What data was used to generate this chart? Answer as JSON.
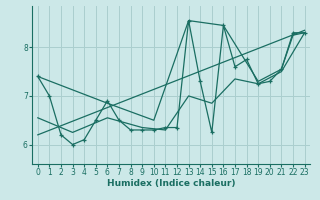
{
  "xlabel": "Humidex (Indice chaleur)",
  "ylabel": "",
  "bg_color": "#cce8e8",
  "grid_color": "#aacece",
  "line_color": "#1a6e62",
  "xlim": [
    -0.5,
    23.5
  ],
  "ylim": [
    5.6,
    8.85
  ],
  "xticks": [
    0,
    1,
    2,
    3,
    4,
    5,
    6,
    7,
    8,
    9,
    10,
    11,
    12,
    13,
    14,
    15,
    16,
    17,
    18,
    19,
    20,
    21,
    22,
    23
  ],
  "yticks": [
    6,
    7,
    8
  ],
  "series_jagged_x": [
    0,
    1,
    2,
    3,
    4,
    5,
    6,
    7,
    8,
    9,
    10,
    11,
    12,
    13,
    14,
    15,
    16,
    17,
    18,
    19,
    20,
    21,
    22,
    23
  ],
  "series_jagged_y": [
    7.4,
    7.0,
    6.2,
    6.0,
    6.1,
    6.5,
    6.9,
    6.5,
    6.3,
    6.3,
    6.3,
    6.35,
    6.35,
    8.55,
    7.3,
    6.25,
    8.45,
    7.6,
    7.75,
    7.25,
    7.3,
    7.55,
    8.3,
    8.3
  ],
  "series_trend_x": [
    0,
    23
  ],
  "series_trend_y": [
    6.2,
    8.35
  ],
  "series_lower_x": [
    0,
    3,
    6,
    9,
    11,
    13,
    15,
    17,
    19,
    21,
    23
  ],
  "series_lower_y": [
    6.55,
    6.25,
    6.55,
    6.35,
    6.3,
    7.0,
    6.85,
    7.35,
    7.25,
    7.5,
    8.3
  ],
  "series_upper_x": [
    0,
    6,
    10,
    13,
    16,
    19,
    21,
    22,
    23
  ],
  "series_upper_y": [
    7.4,
    6.85,
    6.5,
    8.55,
    8.45,
    7.3,
    7.55,
    8.25,
    8.3
  ]
}
